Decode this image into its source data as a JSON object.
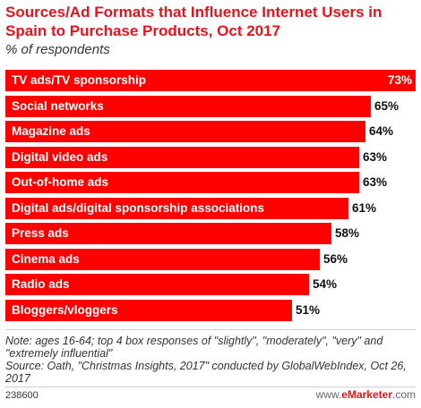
{
  "title": "Sources/Ad Formats that Influence Internet Users in Spain to Purchase Products, Oct 2017",
  "subtitle": "% of respondents",
  "colors": {
    "bar": "#ff0000",
    "title": "#e8121b"
  },
  "chart_data": {
    "type": "bar",
    "orientation": "horizontal",
    "title": "Sources/Ad Formats that Influence Internet Users in Spain to Purchase Products, Oct 2017",
    "subtitle": "% of respondents",
    "categories": [
      "TV ads/TV sponsorship",
      "Social networks",
      "Magazine ads",
      "Digital video ads",
      "Out-of-home ads",
      "Digital ads/digital sponsorship associations",
      "Press ads",
      "Cinema ads",
      "Radio ads",
      "Bloggers/vloggers"
    ],
    "values": [
      73,
      65,
      64,
      63,
      63,
      61,
      58,
      56,
      54,
      51
    ],
    "value_labels": [
      "73%",
      "65%",
      "64%",
      "63%",
      "63%",
      "61%",
      "58%",
      "56%",
      "54%",
      "51%"
    ],
    "xlim": [
      0,
      73
    ],
    "grid": false,
    "legend": "none"
  },
  "notes": {
    "note": "Note: ages 16-64; top 4 box responses of \"slightly\", \"moderately\", \"very\" and \"extremely influential\"",
    "source": "Source: Oath, \"Christmas Insights, 2017\" conducted by GlobalWebIndex, Oct 26, 2017"
  },
  "footer": {
    "id": "238600",
    "site_prefix": "www.",
    "brand": "eMarketer",
    "site_suffix": ".com"
  }
}
